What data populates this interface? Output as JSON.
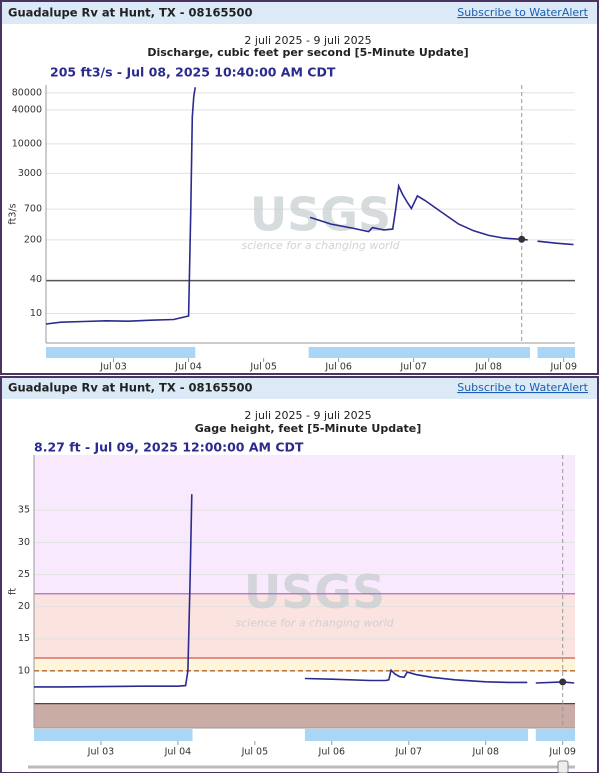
{
  "chart_data": [
    {
      "type": "line",
      "header": "Guadalupe Rv at Hunt, TX - 08165500",
      "link": "Subscribe to WaterAlert",
      "subtitle": "2 juli 2025 - 9 juli 2025",
      "title": "Discharge, cubic feet per second [5-Minute Update]",
      "readout": "205 ft3/s - Jul 08, 2025 10:40:00 AM CDT",
      "y_label": "ft3/s",
      "watermark": "USGS",
      "watermark_tagline": "science for a changing world",
      "log_scale": true,
      "grid": true,
      "color": "#2b2a8f",
      "x": [
        2.1,
        2.3,
        2.6,
        2.9,
        3.2,
        3.5,
        3.8,
        4.0,
        4.03,
        4.05,
        4.07,
        4.09,
        4.8,
        5.62,
        5.9,
        6.2,
        6.4,
        6.45,
        6.6,
        6.72,
        6.76,
        6.8,
        6.85,
        6.92,
        6.97,
        7.05,
        7.15,
        7.35,
        7.6,
        7.8,
        8.0,
        8.2,
        8.44,
        8.52,
        8.58,
        8.65,
        8.9,
        9.13
      ],
      "values": [
        6.5,
        7,
        7.2,
        7.4,
        7.3,
        7.6,
        7.8,
        9,
        700,
        30000,
        70000,
        100000,
        null,
        500,
        380,
        320,
        280,
        330,
        300,
        310,
        700,
        1800,
        1300,
        900,
        720,
        1200,
        1000,
        650,
        380,
        290,
        240,
        215,
        205,
        200,
        null,
        190,
        175,
        165
      ],
      "marker": {
        "x": 8.44,
        "y": 205
      },
      "thresholds": [
        {
          "value": 38,
          "color": "#555555"
        }
      ],
      "bands": [
        [
          2.1,
          4.09
        ],
        [
          5.6,
          8.55
        ],
        [
          8.65,
          9.15
        ]
      ],
      "band_color": "#a9d6f7",
      "xlim": [
        2.1,
        9.15
      ],
      "ylim": [
        3,
        110000
      ],
      "yticks": [
        10,
        40,
        200,
        700,
        3000,
        10000,
        40000,
        80000
      ],
      "xticks": [
        {
          "value": 3,
          "label": "Jul 03"
        },
        {
          "value": 4,
          "label": "Jul 04"
        },
        {
          "value": 5,
          "label": "Jul 05"
        },
        {
          "value": 6,
          "label": "Jul 06"
        },
        {
          "value": 7,
          "label": "Jul 07"
        },
        {
          "value": 8,
          "label": "Jul 08"
        },
        {
          "value": 9,
          "label": "Jul 09"
        }
      ]
    },
    {
      "type": "line",
      "header": "Guadalupe Rv at Hunt, TX - 08165500",
      "link": "Subscribe to WaterAlert",
      "subtitle": "2 juli 2025 - 9 juli 2025",
      "title": "Gage height, feet [5-Minute Update]",
      "readout": "8.27 ft - Jul 09, 2025 12:00:00 AM CDT",
      "y_label": "ft",
      "watermark": "USGS",
      "watermark_tagline": "science for a changing world",
      "log_scale": false,
      "grid": true,
      "color": "#2b2a8f",
      "x": [
        2.13,
        2.5,
        3.0,
        3.5,
        4.0,
        4.1,
        4.13,
        4.16,
        4.18,
        4.9,
        5.65,
        6.0,
        6.5,
        6.7,
        6.74,
        6.77,
        6.82,
        6.88,
        6.94,
        6.98,
        7.1,
        7.3,
        7.6,
        8.0,
        8.3,
        8.54,
        8.6,
        8.65,
        9.0,
        9.15
      ],
      "values": [
        7.5,
        7.5,
        7.55,
        7.6,
        7.6,
        7.7,
        10,
        25,
        37.5,
        null,
        8.8,
        8.7,
        8.5,
        8.5,
        8.6,
        10.1,
        9.5,
        9.1,
        9.0,
        9.8,
        9.4,
        9.0,
        8.6,
        8.3,
        8.2,
        8.2,
        null,
        8.1,
        8.27,
        8.1
      ],
      "marker": {
        "x": 9.0,
        "y": 8.27
      },
      "zones": [
        {
          "from": 22,
          "to": 43.6,
          "color": "#f8eafc"
        },
        {
          "from": 12,
          "to": 22,
          "color": "#fbe3df"
        },
        {
          "from": 10,
          "to": 12,
          "color": "#fdf4dc"
        },
        {
          "from": 1.1,
          "to": 4.9,
          "color": "#c8aca5"
        }
      ],
      "thresholds": [
        {
          "value": 22,
          "color": "#b46cc6"
        },
        {
          "value": 12,
          "color": "#d9534f"
        },
        {
          "value": 10,
          "color": "#b5651d",
          "dashed": true
        },
        {
          "value": 4.9,
          "color": "#6b3a2e"
        }
      ],
      "bands": [
        [
          2.13,
          4.19
        ],
        [
          5.65,
          8.55
        ],
        [
          8.65,
          9.16
        ]
      ],
      "band_color": "#a9d6f7",
      "xlim": [
        2.13,
        9.16
      ],
      "ylim": [
        1.1,
        43.6
      ],
      "yticks": [
        10,
        15,
        20,
        25,
        30,
        35
      ],
      "xticks": [
        {
          "value": 3,
          "label": "Jul 03"
        },
        {
          "value": 4,
          "label": "Jul 04"
        },
        {
          "value": 5,
          "label": "Jul 05"
        },
        {
          "value": 6,
          "label": "Jul 06"
        },
        {
          "value": 7,
          "label": "Jul 07"
        },
        {
          "value": 8,
          "label": "Jul 08"
        },
        {
          "value": 9,
          "label": "Jul 09"
        }
      ]
    }
  ]
}
